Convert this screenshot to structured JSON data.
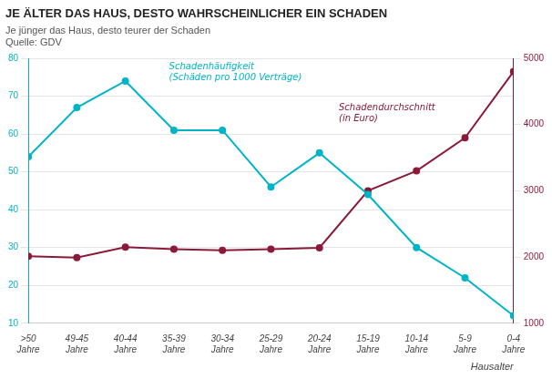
{
  "chart_data": {
    "type": "line",
    "title": "JE ÄLTER DAS HAUS, DESTO WAHRSCHEINLICHER EIN SCHADEN",
    "subtitle": "Je jünger das Haus, desto teurer der Schaden",
    "source": "Quelle: GDV",
    "xlabel": "Hausalter",
    "categories": [
      ">50\nJahre",
      "49-45\nJahre",
      "40-44\nJahre",
      "35-39\nJahre",
      "30-34\nJahre",
      "25-29\nJahre",
      "20-24\nJahre",
      "15-19\nJahre",
      "10-14\nJahre",
      "5-9\nJahre",
      "0-4\nJahre"
    ],
    "series": [
      {
        "name": "Schadenhäufigkeit\n(Schäden pro 1000 Verträge)",
        "color": "#00B4C8",
        "marker": "circle",
        "values": [
          54,
          67,
          74,
          61,
          61,
          46,
          55,
          44,
          30,
          22,
          12
        ]
      },
      {
        "name": "Schadendurchschnitt\n(in Euro)",
        "color": "#8B1A3A",
        "marker": "circle",
        "axis": "y2",
        "values": [
          2010,
          1990,
          2150,
          2120,
          2100,
          2120,
          2140,
          3000,
          3300,
          3800,
          4800
        ]
      }
    ],
    "ylim": [
      10,
      80
    ],
    "yticks": [
      10,
      20,
      30,
      40,
      50,
      60,
      70,
      80
    ],
    "y2lim": [
      1000,
      5000
    ],
    "y2ticks": [
      1000,
      2000,
      3000,
      4000,
      5000
    ],
    "grid": true
  }
}
